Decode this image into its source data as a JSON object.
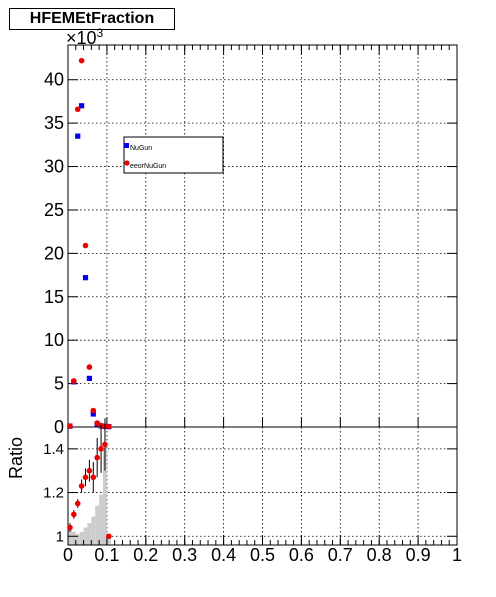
{
  "chart_data": [
    {
      "type": "scatter",
      "title": "HFEMEtFraction",
      "multiplier_label": "×10",
      "multiplier_exp": "3",
      "xlim": [
        0,
        1
      ],
      "ylim": [
        0,
        44000
      ],
      "yticks": [
        0,
        5000,
        10000,
        15000,
        20000,
        25000,
        30000,
        35000,
        40000
      ],
      "yticklabels": [
        "0",
        "5",
        "10",
        "15",
        "20",
        "25",
        "30",
        "35",
        "40"
      ],
      "grid": true,
      "legend": {
        "position": "upper-left inside",
        "entries": [
          "NuGun",
          "eeorNuGun"
        ]
      },
      "series": [
        {
          "name": "NuGun",
          "marker": "square",
          "color": "#0000ee",
          "x": [
            0.005,
            0.015,
            0.025,
            0.035,
            0.045,
            0.055,
            0.065,
            0.075,
            0.085,
            0.095,
            0.105
          ],
          "y": [
            100,
            5200,
            33500,
            37000,
            17200,
            5600,
            1500,
            350,
            120,
            60,
            40
          ]
        },
        {
          "name": "eeorNuGun",
          "marker": "circle",
          "color": "#ee0000",
          "x": [
            0.005,
            0.015,
            0.025,
            0.035,
            0.045,
            0.055,
            0.065,
            0.075,
            0.085,
            0.095,
            0.105
          ],
          "y": [
            110,
            5300,
            36600,
            42200,
            20900,
            6900,
            1900,
            450,
            160,
            80,
            50
          ]
        }
      ]
    },
    {
      "type": "scatter",
      "ylabel": "Ratio",
      "xlim": [
        0,
        1
      ],
      "ylim": [
        0.96,
        1.5
      ],
      "xticks": [
        0,
        0.1,
        0.2,
        0.3,
        0.4,
        0.5,
        0.6,
        0.7,
        0.8,
        0.9,
        1
      ],
      "xticklabels": [
        "0",
        "0.1",
        "0.2",
        "0.3",
        "0.4",
        "0.5",
        "0.6",
        "0.7",
        "0.8",
        "0.9",
        "1"
      ],
      "yticks": [
        1,
        1.2,
        1.4
      ],
      "yticklabels": [
        "1",
        "1.2",
        "1.4"
      ],
      "grid": true,
      "series": [
        {
          "name": "ratio",
          "marker": "circle",
          "color": "#ee0000",
          "x": [
            0.005,
            0.015,
            0.025,
            0.035,
            0.045,
            0.055,
            0.065,
            0.075,
            0.085,
            0.095,
            0.105
          ],
          "y": [
            1.04,
            1.1,
            1.15,
            1.23,
            1.27,
            1.3,
            1.27,
            1.36,
            1.4,
            1.42,
            1.0
          ],
          "yerr": [
            0.02,
            0.02,
            0.02,
            0.03,
            0.04,
            0.05,
            0.07,
            0.09,
            0.11,
            0.12,
            0.0
          ]
        }
      ],
      "shaded_histogram": {
        "color": "#cccccc",
        "x": [
          0.005,
          0.015,
          0.025,
          0.035,
          0.045,
          0.055,
          0.065,
          0.075,
          0.085,
          0.095,
          0.105
        ],
        "y": [
          1.03,
          1.02,
          1.01,
          1.02,
          1.04,
          1.06,
          1.09,
          1.14,
          1.19,
          1.4,
          1.0
        ]
      }
    }
  ]
}
